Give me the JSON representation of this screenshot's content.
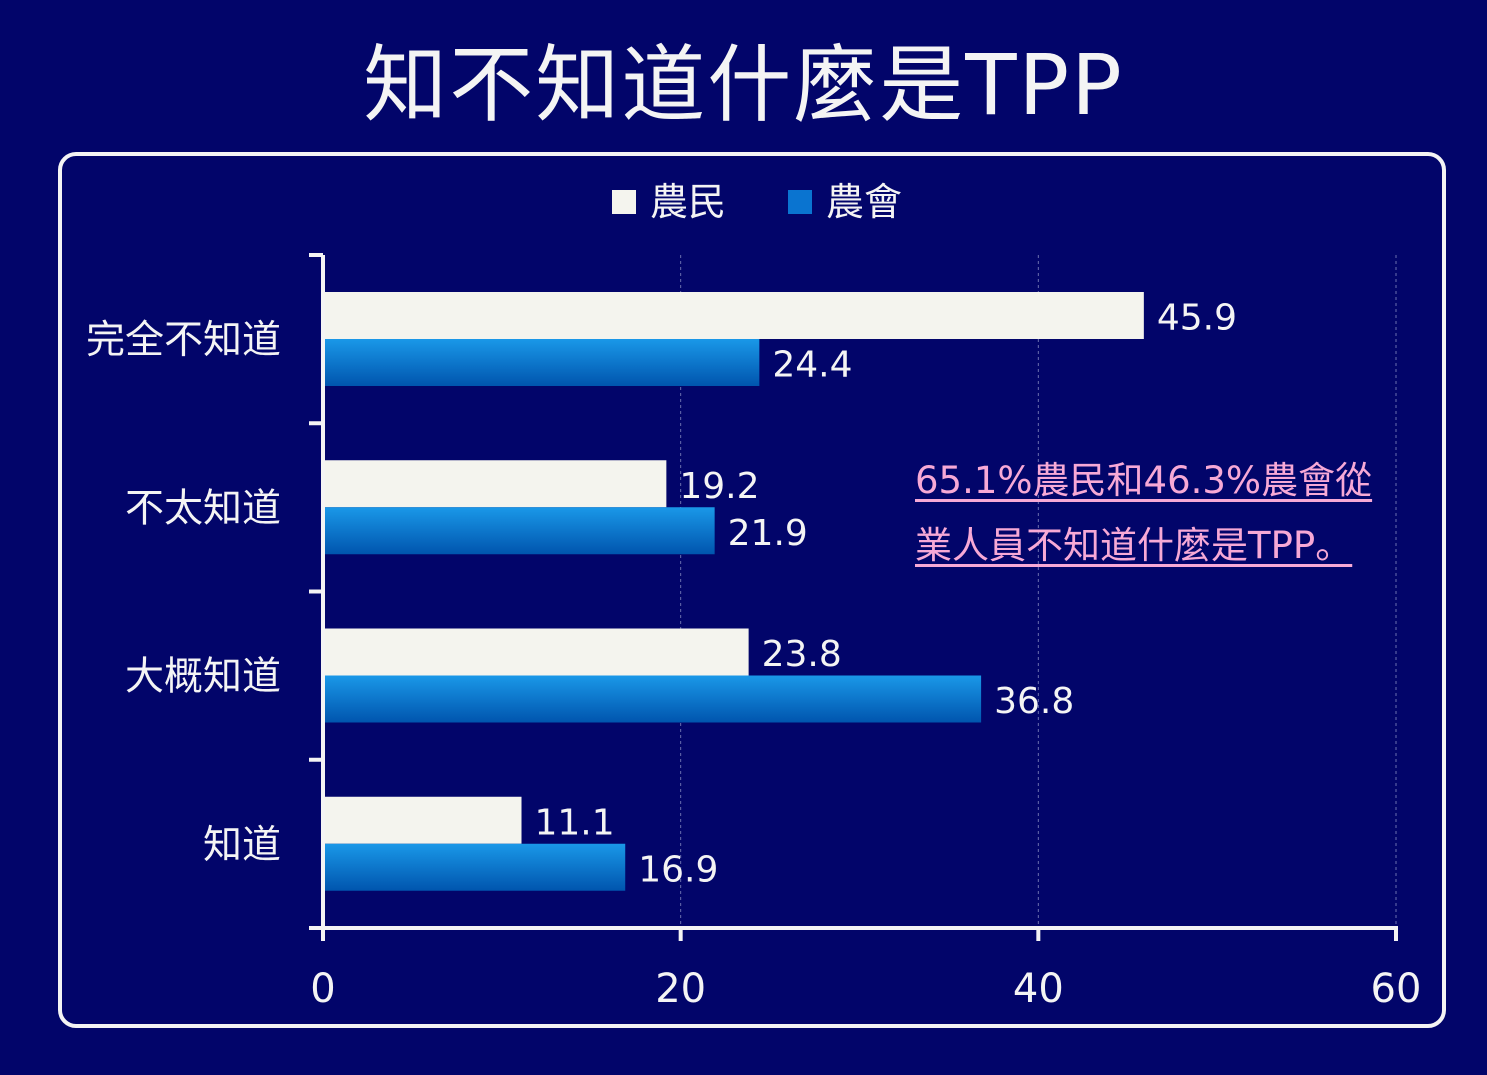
{
  "title": "知不知道什麼是TPP",
  "annotation": {
    "line1": "65.1%農民和46.3%農會從",
    "line2": "業人員不知道什麼是TPP。"
  },
  "chart_data": {
    "type": "bar",
    "orientation": "horizontal",
    "title": "知不知道什麼是TPP",
    "categories": [
      "完全不知道",
      "不太知道",
      "大概知道",
      "知道"
    ],
    "series": [
      {
        "name": "農民",
        "color": "#f4f4ee",
        "values": [
          45.9,
          19.2,
          23.8,
          11.1
        ]
      },
      {
        "name": "農會",
        "color": "#0a74d0",
        "values": [
          24.4,
          21.9,
          36.8,
          16.9
        ]
      }
    ],
    "xlim": [
      0,
      60
    ],
    "xticks": [
      0,
      20,
      40,
      60
    ],
    "grid": "vertical dashed",
    "legend": "top-center",
    "xlabel": "",
    "ylabel": ""
  }
}
